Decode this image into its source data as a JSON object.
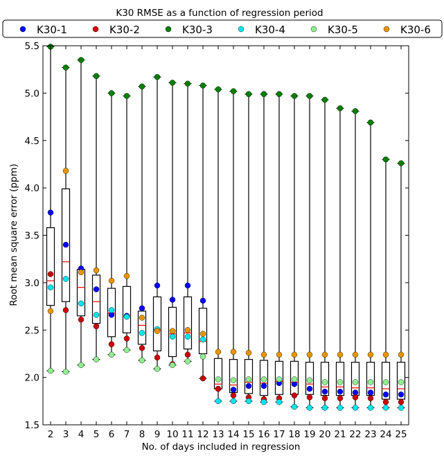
{
  "chart_data": {
    "type": "boxplot",
    "title": "K30 RMSE as a function of  regression period",
    "xlabel": "No. of days included in  regression",
    "ylabel": "Root mean square error (ppm)",
    "ylim": [
      1.5,
      5.5
    ],
    "yticks": [
      "1.5",
      "2.0",
      "2.5",
      "3.0",
      "3.5",
      "4.0",
      "4.5",
      "5.0",
      "5.5"
    ],
    "categories": [
      2,
      3,
      4,
      5,
      6,
      7,
      8,
      9,
      10,
      11,
      12,
      13,
      14,
      15,
      16,
      17,
      18,
      19,
      20,
      21,
      22,
      23,
      24,
      25
    ],
    "legend": {
      "placement": "top"
    },
    "series": [
      {
        "name": "K30-1",
        "color": "#0000ff",
        "values": [
          3.74,
          3.4,
          3.15,
          2.93,
          2.66,
          2.65,
          2.73,
          2.97,
          2.82,
          2.97,
          2.81,
          1.88,
          1.87,
          1.91,
          1.91,
          1.94,
          1.93,
          1.88,
          1.85,
          1.85,
          1.84,
          1.84,
          1.82,
          1.82
        ]
      },
      {
        "name": "K30-2",
        "color": "#cc0000",
        "values": [
          3.09,
          2.71,
          2.61,
          2.54,
          2.35,
          2.41,
          2.31,
          2.21,
          2.14,
          2.24,
          1.99,
          1.88,
          1.81,
          1.79,
          1.77,
          1.78,
          1.81,
          1.79,
          1.78,
          1.78,
          1.79,
          1.78,
          1.74,
          1.74
        ]
      },
      {
        "name": "K30-3",
        "color": "#007f00",
        "values": [
          5.49,
          5.27,
          5.35,
          5.18,
          5.0,
          4.97,
          5.07,
          5.17,
          5.11,
          5.1,
          5.08,
          5.04,
          5.02,
          4.99,
          4.99,
          4.99,
          4.97,
          4.97,
          4.93,
          4.84,
          4.81,
          4.69,
          4.3,
          4.26
        ]
      },
      {
        "name": "K30-4",
        "color": "#00e5ee",
        "values": [
          2.95,
          3.04,
          2.78,
          2.66,
          2.71,
          2.64,
          2.47,
          2.51,
          2.43,
          2.43,
          2.4,
          1.75,
          1.75,
          1.75,
          1.74,
          1.74,
          1.69,
          1.68,
          1.68,
          1.68,
          1.68,
          1.68,
          1.68,
          1.68
        ]
      },
      {
        "name": "K30-5",
        "color": "#90ee90",
        "values": [
          2.07,
          2.06,
          2.13,
          2.19,
          2.24,
          2.29,
          2.18,
          2.09,
          2.13,
          2.17,
          2.22,
          1.98,
          1.97,
          1.98,
          1.98,
          1.98,
          1.98,
          1.97,
          1.95,
          1.95,
          1.95,
          1.95,
          1.95,
          1.95
        ]
      },
      {
        "name": "K30-6",
        "color": "#e69500",
        "values": [
          2.7,
          4.18,
          3.11,
          3.13,
          3.02,
          3.07,
          2.63,
          2.49,
          2.49,
          2.5,
          2.46,
          2.27,
          2.27,
          2.26,
          2.24,
          2.24,
          2.24,
          2.24,
          2.24,
          2.24,
          2.24,
          2.24,
          2.24,
          2.24
        ]
      }
    ],
    "boxes": [
      {
        "q1": 2.76,
        "median": 3.02,
        "q3": 3.58
      },
      {
        "q1": 2.8,
        "median": 3.22,
        "q3": 3.99
      },
      {
        "q1": 2.65,
        "median": 2.95,
        "q3": 3.14
      },
      {
        "q1": 2.57,
        "median": 2.8,
        "q3": 3.08
      },
      {
        "q1": 2.43,
        "median": 2.68,
        "q3": 2.94
      },
      {
        "q1": 2.47,
        "median": 2.65,
        "q3": 2.96
      },
      {
        "q1": 2.35,
        "median": 2.55,
        "q3": 2.7
      },
      {
        "q1": 2.28,
        "median": 2.5,
        "q3": 2.85
      },
      {
        "q1": 2.22,
        "median": 2.46,
        "q3": 2.74
      },
      {
        "q1": 2.3,
        "median": 2.47,
        "q3": 2.85
      },
      {
        "q1": 2.25,
        "median": 2.38,
        "q3": 2.73
      },
      {
        "q1": 1.88,
        "median": 1.93,
        "q3": 2.2
      },
      {
        "q1": 1.84,
        "median": 1.92,
        "q3": 2.19
      },
      {
        "q1": 1.83,
        "median": 1.95,
        "q3": 2.19
      },
      {
        "q1": 1.81,
        "median": 1.94,
        "q3": 2.18
      },
      {
        "q1": 1.82,
        "median": 1.96,
        "q3": 2.17
      },
      {
        "q1": 1.82,
        "median": 1.95,
        "q3": 2.17
      },
      {
        "q1": 1.82,
        "median": 1.93,
        "q3": 2.16
      },
      {
        "q1": 1.81,
        "median": 1.9,
        "q3": 2.16
      },
      {
        "q1": 1.81,
        "median": 1.9,
        "q3": 2.16
      },
      {
        "q1": 1.81,
        "median": 1.89,
        "q3": 2.16
      },
      {
        "q1": 1.81,
        "median": 1.89,
        "q3": 2.16
      },
      {
        "q1": 1.77,
        "median": 1.88,
        "q3": 2.16
      },
      {
        "q1": 1.77,
        "median": 1.88,
        "q3": 2.16
      }
    ],
    "box_color": "#000000",
    "median_color": "#ff0000"
  }
}
